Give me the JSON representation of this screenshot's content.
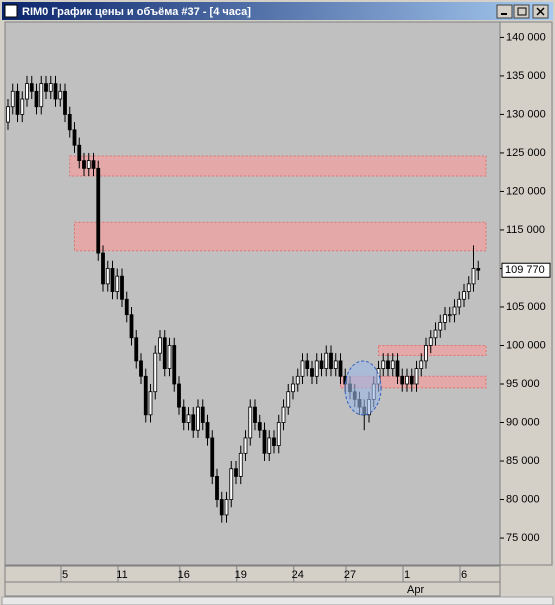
{
  "window": {
    "title": "RIM0 График цены и объёма #37 - [4 часа]"
  },
  "chart_data": {
    "type": "candlestick",
    "open": [
      129000,
      131000,
      133000,
      130000,
      132000,
      134000,
      133000,
      131000,
      134000,
      133000,
      134000,
      132000,
      133000,
      130000,
      128000,
      126000,
      124000,
      123000,
      124000,
      123000,
      112000,
      108000,
      110000,
      107000,
      109000,
      106000,
      104000,
      101000,
      98000,
      96000,
      91000,
      94000,
      99000,
      101000,
      97000,
      100000,
      95000,
      92000,
      90000,
      91000,
      89000,
      92000,
      90000,
      88000,
      83000,
      80000,
      78000,
      80000,
      84000,
      83000,
      86000,
      88000,
      92000,
      90000,
      89000,
      86000,
      88000,
      87000,
      90000,
      92000,
      94000,
      95000,
      96000,
      98000,
      97000,
      96000,
      98000,
      97000,
      99000,
      97000,
      98000,
      96000,
      95000,
      94000,
      93000,
      92000,
      91000,
      93000,
      95000,
      97000,
      98000,
      97000,
      98000,
      96000,
      95000,
      96000,
      95000,
      97000,
      98000,
      100000,
      101000,
      102000,
      103000,
      104000,
      104000,
      105000,
      106000,
      107000,
      108000,
      110000
    ],
    "high": [
      132000,
      134000,
      134000,
      133000,
      135000,
      135000,
      134000,
      135000,
      135000,
      135000,
      135000,
      134000,
      134000,
      131000,
      129000,
      127000,
      125000,
      125000,
      125000,
      124000,
      113000,
      111000,
      111000,
      110000,
      110000,
      107000,
      105000,
      102000,
      99000,
      97000,
      95000,
      100000,
      102000,
      102000,
      101000,
      101000,
      96000,
      93000,
      92000,
      92000,
      93000,
      93000,
      91000,
      89000,
      84000,
      81000,
      81000,
      85000,
      85000,
      87000,
      89000,
      93000,
      93000,
      91000,
      90000,
      89000,
      89000,
      91000,
      93000,
      95000,
      96000,
      97000,
      99000,
      99000,
      98000,
      99000,
      99000,
      100000,
      100000,
      99000,
      99000,
      97000,
      96000,
      95000,
      94000,
      93000,
      94000,
      96000,
      98000,
      99000,
      99000,
      99000,
      99000,
      97000,
      97000,
      97000,
      98000,
      99000,
      101000,
      102000,
      103000,
      104000,
      105000,
      105000,
      106000,
      107000,
      108000,
      109000,
      113000,
      111000
    ],
    "low": [
      128000,
      130000,
      129000,
      129000,
      131000,
      132000,
      130000,
      130000,
      132000,
      132000,
      131000,
      131000,
      129000,
      127000,
      125000,
      123000,
      122000,
      122000,
      122000,
      111000,
      107000,
      107000,
      106000,
      106000,
      105000,
      103000,
      100000,
      97000,
      95000,
      90000,
      90000,
      93000,
      98000,
      96000,
      96000,
      94000,
      91000,
      89000,
      89000,
      88000,
      88000,
      89000,
      87000,
      82000,
      79000,
      77000,
      77000,
      79000,
      82000,
      82000,
      85000,
      87000,
      89000,
      88000,
      85000,
      85000,
      86000,
      86000,
      89000,
      91000,
      93000,
      94000,
      95000,
      96000,
      95000,
      95000,
      96000,
      96000,
      96000,
      96000,
      95000,
      94000,
      93000,
      92000,
      91000,
      89000,
      90000,
      92000,
      94000,
      96000,
      96000,
      96000,
      95000,
      94000,
      94000,
      94000,
      94000,
      96000,
      97000,
      99000,
      100000,
      101000,
      102000,
      103000,
      103000,
      104000,
      105000,
      106000,
      107000,
      108500
    ],
    "close": [
      131000,
      133000,
      130000,
      132000,
      134000,
      133000,
      131000,
      134000,
      133000,
      134000,
      132000,
      133000,
      130000,
      128000,
      126000,
      124000,
      123000,
      124000,
      123000,
      112000,
      108000,
      110000,
      107000,
      109000,
      106000,
      104000,
      101000,
      98000,
      96000,
      91000,
      94000,
      99000,
      101000,
      97000,
      100000,
      95000,
      92000,
      90000,
      91000,
      89000,
      92000,
      90000,
      88000,
      83000,
      80000,
      78000,
      80000,
      84000,
      83000,
      86000,
      88000,
      92000,
      90000,
      89000,
      86000,
      88000,
      87000,
      90000,
      92000,
      94000,
      95000,
      96000,
      98000,
      97000,
      96000,
      98000,
      97000,
      99000,
      97000,
      98000,
      96000,
      95000,
      94000,
      93000,
      92000,
      91000,
      93000,
      95000,
      97000,
      98000,
      97000,
      98000,
      96000,
      95000,
      96000,
      95000,
      97000,
      98000,
      100000,
      101000,
      102000,
      103000,
      104000,
      104000,
      105000,
      106000,
      107000,
      108000,
      110000,
      109770
    ],
    "ylim": [
      71500,
      142000
    ],
    "yticks": [
      {
        "value": 140000,
        "label": "140 000"
      },
      {
        "value": 135000,
        "label": "135 000"
      },
      {
        "value": 130000,
        "label": "130 000"
      },
      {
        "value": 125000,
        "label": "125 000"
      },
      {
        "value": 120000,
        "label": "120 000"
      },
      {
        "value": 115000,
        "label": "115 000"
      },
      {
        "value": 110000,
        "label": "110 000"
      },
      {
        "value": 105000,
        "label": "105 000"
      },
      {
        "value": 100000,
        "label": "100 000"
      },
      {
        "value": 95000,
        "label": "95 000"
      },
      {
        "value": 90000,
        "label": "90 000"
      },
      {
        "value": 85000,
        "label": "85 000"
      },
      {
        "value": 80000,
        "label": "80 000"
      },
      {
        "value": 75000,
        "label": "75 000"
      }
    ],
    "xticks": [
      {
        "value": 12,
        "label": "5"
      },
      {
        "value": 24,
        "label": "11"
      },
      {
        "value": 37,
        "label": "16"
      },
      {
        "value": 49,
        "label": "19"
      },
      {
        "value": 61,
        "label": "24"
      },
      {
        "value": 72,
        "label": "27"
      },
      {
        "value": 84,
        "label": "1"
      },
      {
        "value": 96,
        "label": "6"
      }
    ],
    "month_label": "Apr",
    "last_price": {
      "value": 109770,
      "label": "109 770"
    },
    "zones": [
      {
        "start": 13,
        "low": 122000,
        "high": 124600
      },
      {
        "start": 14,
        "low": 112300,
        "high": 116000
      },
      {
        "start": 78,
        "low": 98700,
        "high": 100000
      },
      {
        "start": 70,
        "low": 94500,
        "high": 96000
      }
    ],
    "zone_color": "#f0a0a0",
    "up_color": "#ffffff",
    "down_color": "#000000"
  }
}
